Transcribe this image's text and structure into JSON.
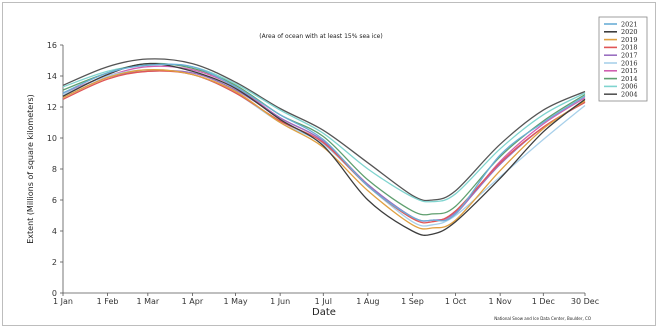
{
  "chart_data": {
    "type": "line",
    "title": "(Area of ocean with at least 15% sea ice)",
    "xlabel": "Date",
    "ylabel": "Extent (Millions of square kilometers)",
    "footnote": "National Snow and Ice Data Center, Boulder, CO",
    "x_ticks": [
      "1 Jan",
      "1 Feb",
      "1 Mar",
      "1 Apr",
      "1 May",
      "1 Jun",
      "1 Jul",
      "1 Aug",
      "1 Sep",
      "1 Oct",
      "1 Nov",
      "1 Dec",
      "30 Dec"
    ],
    "x_tick_days": [
      1,
      32,
      60,
      91,
      121,
      152,
      182,
      213,
      244,
      274,
      305,
      335,
      364
    ],
    "xlim": [
      1,
      364
    ],
    "ylim": [
      0,
      16
    ],
    "y_ticks": [
      0,
      2,
      4,
      6,
      8,
      10,
      12,
      14,
      16
    ],
    "grid": false,
    "legend_position": "top-right",
    "series": [
      {
        "name": "2021",
        "color": "#6aaed6",
        "values": [
          [
            1,
            12.9
          ],
          [
            32,
            14.2
          ],
          [
            60,
            14.7
          ],
          [
            91,
            14.6
          ],
          [
            121,
            13.3
          ],
          [
            152,
            11.5
          ],
          [
            182,
            9.9
          ],
          [
            213,
            6.9
          ],
          [
            244,
            4.9
          ],
          [
            258,
            4.7
          ],
          [
            274,
            5.1
          ],
          [
            305,
            8.9
          ],
          [
            335,
            11.0
          ],
          [
            364,
            12.7
          ]
        ]
      },
      {
        "name": "2020",
        "color": "#3d3d3d",
        "values": [
          [
            1,
            12.7
          ],
          [
            32,
            14.1
          ],
          [
            60,
            14.8
          ],
          [
            91,
            14.3
          ],
          [
            121,
            13.2
          ],
          [
            152,
            11.2
          ],
          [
            182,
            9.5
          ],
          [
            213,
            6.0
          ],
          [
            244,
            4.0
          ],
          [
            258,
            3.8
          ],
          [
            274,
            4.6
          ],
          [
            305,
            7.4
          ],
          [
            335,
            10.4
          ],
          [
            364,
            12.5
          ]
        ]
      },
      {
        "name": "2019",
        "color": "#e0a040",
        "values": [
          [
            1,
            12.6
          ],
          [
            32,
            13.9
          ],
          [
            60,
            14.4
          ],
          [
            91,
            14.1
          ],
          [
            121,
            13.0
          ],
          [
            152,
            11.0
          ],
          [
            182,
            9.4
          ],
          [
            213,
            6.6
          ],
          [
            244,
            4.4
          ],
          [
            258,
            4.2
          ],
          [
            274,
            4.7
          ],
          [
            305,
            7.9
          ],
          [
            335,
            10.6
          ],
          [
            364,
            12.4
          ]
        ]
      },
      {
        "name": "2018",
        "color": "#e05555",
        "values": [
          [
            1,
            12.5
          ],
          [
            32,
            13.8
          ],
          [
            60,
            14.3
          ],
          [
            91,
            14.1
          ],
          [
            121,
            12.9
          ],
          [
            152,
            11.1
          ],
          [
            182,
            9.7
          ],
          [
            213,
            6.9
          ],
          [
            244,
            4.8
          ],
          [
            258,
            4.6
          ],
          [
            274,
            5.3
          ],
          [
            305,
            8.4
          ],
          [
            335,
            10.7
          ],
          [
            364,
            12.3
          ]
        ]
      },
      {
        "name": "2017",
        "color": "#9a6fc0",
        "values": [
          [
            1,
            12.6
          ],
          [
            32,
            13.9
          ],
          [
            60,
            14.3
          ],
          [
            91,
            14.2
          ],
          [
            121,
            13.1
          ],
          [
            152,
            11.3
          ],
          [
            182,
            9.8
          ],
          [
            213,
            7.0
          ],
          [
            244,
            4.9
          ],
          [
            258,
            4.7
          ],
          [
            274,
            5.2
          ],
          [
            305,
            8.3
          ],
          [
            335,
            10.7
          ],
          [
            364,
            12.3
          ]
        ]
      },
      {
        "name": "2016",
        "color": "#a8d0ea",
        "values": [
          [
            1,
            12.8
          ],
          [
            32,
            14.0
          ],
          [
            60,
            14.4
          ],
          [
            91,
            14.1
          ],
          [
            121,
            12.9
          ],
          [
            152,
            11.0
          ],
          [
            182,
            9.6
          ],
          [
            213,
            6.9
          ],
          [
            244,
            4.6
          ],
          [
            258,
            4.4
          ],
          [
            274,
            5.0
          ],
          [
            305,
            7.5
          ],
          [
            335,
            9.9
          ],
          [
            364,
            12.1
          ]
        ]
      },
      {
        "name": "2015",
        "color": "#d060b0",
        "values": [
          [
            1,
            12.9
          ],
          [
            32,
            14.0
          ],
          [
            60,
            14.6
          ],
          [
            91,
            14.4
          ],
          [
            121,
            13.3
          ],
          [
            152,
            11.3
          ],
          [
            182,
            9.8
          ],
          [
            213,
            7.0
          ],
          [
            244,
            4.9
          ],
          [
            258,
            4.7
          ],
          [
            274,
            5.1
          ],
          [
            305,
            8.5
          ],
          [
            335,
            10.9
          ],
          [
            364,
            12.6
          ]
        ]
      },
      {
        "name": "2014",
        "color": "#5f9f6f",
        "values": [
          [
            1,
            13.1
          ],
          [
            32,
            14.2
          ],
          [
            60,
            14.8
          ],
          [
            91,
            14.5
          ],
          [
            121,
            13.4
          ],
          [
            152,
            11.5
          ],
          [
            182,
            10.1
          ],
          [
            213,
            7.3
          ],
          [
            244,
            5.3
          ],
          [
            258,
            5.1
          ],
          [
            274,
            5.6
          ],
          [
            305,
            8.8
          ],
          [
            335,
            11.1
          ],
          [
            364,
            12.8
          ]
        ]
      },
      {
        "name": "2006",
        "color": "#7fd4cf",
        "values": [
          [
            1,
            13.3
          ],
          [
            32,
            14.3
          ],
          [
            60,
            14.7
          ],
          [
            91,
            14.6
          ],
          [
            121,
            13.5
          ],
          [
            152,
            11.8
          ],
          [
            182,
            10.3
          ],
          [
            213,
            8.0
          ],
          [
            244,
            6.2
          ],
          [
            258,
            5.9
          ],
          [
            274,
            6.4
          ],
          [
            305,
            9.3
          ],
          [
            335,
            11.5
          ],
          [
            364,
            12.9
          ]
        ]
      },
      {
        "name": "2004",
        "color": "#555555",
        "values": [
          [
            1,
            13.4
          ],
          [
            32,
            14.6
          ],
          [
            60,
            15.1
          ],
          [
            91,
            14.8
          ],
          [
            121,
            13.6
          ],
          [
            152,
            11.9
          ],
          [
            182,
            10.5
          ],
          [
            213,
            8.4
          ],
          [
            244,
            6.3
          ],
          [
            258,
            6.0
          ],
          [
            274,
            6.6
          ],
          [
            305,
            9.6
          ],
          [
            335,
            11.8
          ],
          [
            364,
            13.0
          ]
        ]
      }
    ]
  }
}
